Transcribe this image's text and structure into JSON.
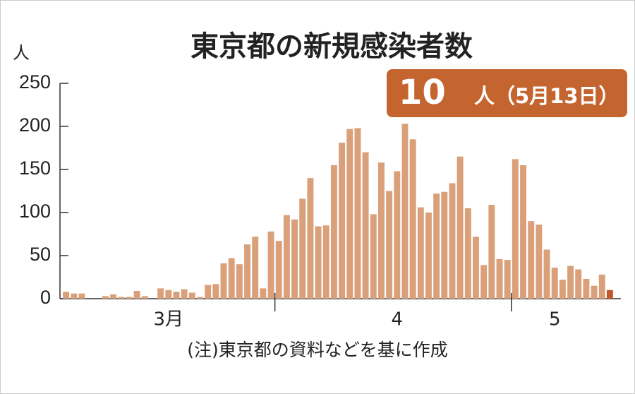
{
  "chart_data": {
    "type": "bar",
    "title": "東京都の新規感染者数",
    "y_unit": "人",
    "annotation": "人（5月13日）",
    "note": "(注)東京都の資料などを基に作成",
    "categories": [
      null,
      null,
      null,
      null,
      null,
      null,
      null,
      null,
      null,
      null,
      null,
      null,
      null,
      "3月",
      null,
      null,
      null,
      null,
      null,
      null,
      null,
      null,
      null,
      null,
      null,
      null,
      null,
      null,
      null,
      null,
      null,
      null,
      null,
      null,
      null,
      null,
      null,
      null,
      null,
      null,
      null,
      null,
      "4",
      null,
      null,
      null,
      null,
      null,
      null,
      null,
      null,
      null,
      null,
      null,
      null,
      null,
      null,
      null,
      null,
      null,
      null,
      null,
      "5",
      null,
      null,
      null,
      null,
      null,
      null,
      null
    ],
    "values": [
      8,
      6,
      6,
      0,
      0,
      3,
      5,
      2,
      2,
      9,
      3,
      0,
      12,
      10,
      8,
      11,
      7,
      2,
      16,
      17,
      41,
      47,
      40,
      63,
      72,
      12,
      78,
      67,
      97,
      92,
      116,
      140,
      84,
      85,
      155,
      181,
      197,
      198,
      170,
      98,
      158,
      125,
      148,
      203,
      185,
      106,
      100,
      122,
      124,
      134,
      165,
      105,
      72,
      39,
      109,
      46,
      45,
      162,
      155,
      90,
      86,
      57,
      36,
      22,
      38,
      34,
      23,
      15,
      28,
      10
    ],
    "color": "#d9a07a",
    "highlight_color": "#c4562c",
    "ylim": [
      0,
      250
    ],
    "yticks": [
      0,
      50,
      100,
      150,
      200,
      250
    ],
    "grid": false
  }
}
